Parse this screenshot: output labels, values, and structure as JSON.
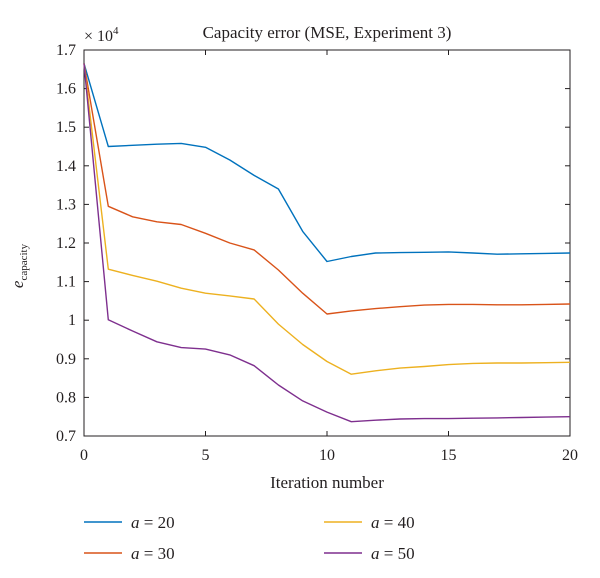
{
  "chart_data": {
    "type": "line",
    "title": "Capacity error (MSE, Experiment 3)",
    "multiplier": "× 10",
    "multiplier_exponent": "4",
    "xlabel": "Iteration number",
    "ylabel_main": "e",
    "ylabel_sub": "capacity",
    "xlim": [
      0,
      20
    ],
    "ylim": [
      0.7,
      1.7
    ],
    "xticks": [
      0,
      5,
      10,
      15,
      20
    ],
    "xtick_labels": [
      "0",
      "5",
      "10",
      "15",
      "20"
    ],
    "yticks": [
      0.7,
      0.8,
      0.9,
      1.0,
      1.1,
      1.2,
      1.3,
      1.4,
      1.5,
      1.6,
      1.7
    ],
    "ytick_labels": [
      "0.7",
      "0.8",
      "0.9",
      "1",
      "1.1",
      "1.2",
      "1.3",
      "1.4",
      "1.5",
      "1.6",
      "1.7"
    ],
    "grid": false,
    "legend_position": "below",
    "x": [
      0,
      1,
      2,
      3,
      4,
      5,
      6,
      7,
      8,
      9,
      10,
      11,
      12,
      13,
      14,
      15,
      16,
      17,
      18,
      19,
      20
    ],
    "series": [
      {
        "name_var": "a",
        "name_rest": " = 20",
        "color": "#0072bd",
        "values": [
          1.665,
          1.45,
          1.453,
          1.456,
          1.458,
          1.448,
          1.415,
          1.375,
          1.34,
          1.23,
          1.152,
          1.165,
          1.174,
          1.175,
          1.176,
          1.177,
          1.174,
          1.171,
          1.172,
          1.173,
          1.174
        ]
      },
      {
        "name_var": "a",
        "name_rest": " = 30",
        "color": "#d95319",
        "values": [
          1.665,
          1.295,
          1.268,
          1.255,
          1.248,
          1.225,
          1.2,
          1.182,
          1.13,
          1.07,
          1.016,
          1.024,
          1.03,
          1.035,
          1.039,
          1.041,
          1.041,
          1.04,
          1.04,
          1.041,
          1.042
        ]
      },
      {
        "name_var": "a",
        "name_rest": " = 40",
        "color": "#edb120",
        "values": [
          1.665,
          1.132,
          1.116,
          1.101,
          1.083,
          1.07,
          1.063,
          1.055,
          0.99,
          0.937,
          0.893,
          0.86,
          0.869,
          0.876,
          0.88,
          0.885,
          0.888,
          0.889,
          0.889,
          0.89,
          0.891
        ]
      },
      {
        "name_var": "a",
        "name_rest": " = 50",
        "color": "#7e2f8e",
        "values": [
          1.665,
          1.001,
          0.972,
          0.944,
          0.929,
          0.925,
          0.91,
          0.882,
          0.832,
          0.791,
          0.762,
          0.737,
          0.741,
          0.744,
          0.745,
          0.745,
          0.746,
          0.747,
          0.748,
          0.749,
          0.75
        ]
      }
    ]
  }
}
